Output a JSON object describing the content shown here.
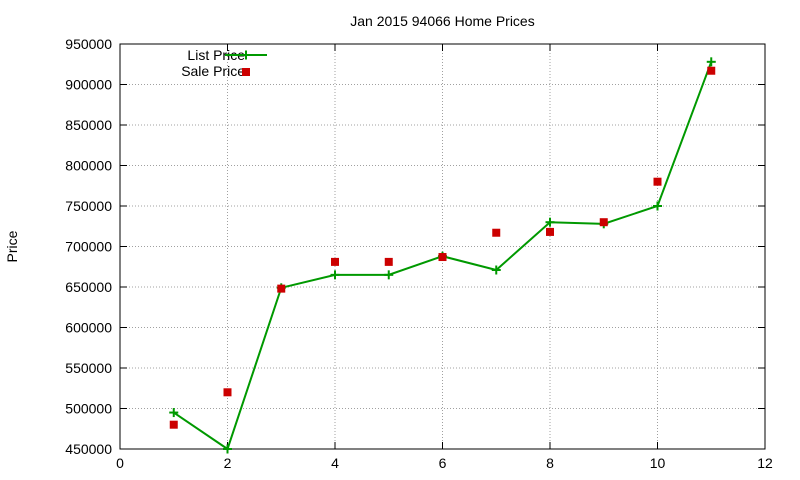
{
  "chart_data": {
    "type": "line",
    "title": "Jan 2015 94066 Home Prices",
    "xlabel": "",
    "ylabel": "Price",
    "xlim": [
      0,
      12
    ],
    "ylim": [
      450000,
      950000
    ],
    "x_ticks": [
      0,
      2,
      4,
      6,
      8,
      10,
      12
    ],
    "x_tick_labels": [
      "0",
      "2",
      "4",
      "6",
      "8",
      "10",
      "12"
    ],
    "y_ticks": [
      450000,
      500000,
      550000,
      600000,
      650000,
      700000,
      750000,
      800000,
      850000,
      900000,
      950000
    ],
    "y_tick_labels": [
      "450000",
      "500000",
      "550000",
      "600000",
      "650000",
      "700000",
      "750000",
      "800000",
      "850000",
      "900000",
      "950000"
    ],
    "grid": true,
    "legend_position": "top-left",
    "series": [
      {
        "name": "List Price",
        "style": "line-with-plus-markers",
        "color": "#009900",
        "x": [
          1,
          2,
          3,
          4,
          5,
          6,
          7,
          8,
          9,
          10,
          11
        ],
        "values": [
          495000,
          450000,
          649000,
          665000,
          665000,
          688000,
          671000,
          730000,
          728000,
          750000,
          928000
        ]
      },
      {
        "name": "Sale Price",
        "style": "square-markers",
        "color": "#cc0000",
        "x": [
          1,
          2,
          3,
          4,
          5,
          6,
          7,
          8,
          9,
          10,
          11
        ],
        "values": [
          480000,
          520000,
          648000,
          681000,
          681000,
          687000,
          717000,
          718000,
          730000,
          780000,
          917000
        ]
      }
    ]
  }
}
